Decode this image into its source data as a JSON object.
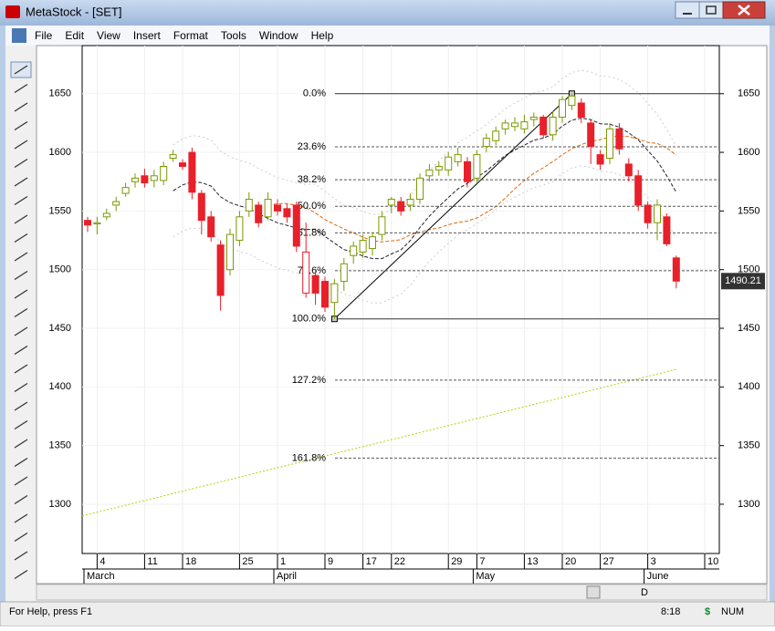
{
  "window": {
    "title": "MetaStock - [SET]",
    "menu": [
      "File",
      "Edit",
      "View",
      "Insert",
      "Format",
      "Tools",
      "Window",
      "Help"
    ],
    "period_button": "D",
    "status": {
      "help": "For Help, press F1",
      "time": "8:18",
      "currency": "$",
      "num": "NUM"
    }
  },
  "chart_data": {
    "type": "candlestick",
    "categories": [
      null,
      "4",
      null,
      null,
      null,
      null,
      "11",
      null,
      null,
      null,
      "18",
      null,
      null,
      null,
      null,
      null,
      "25",
      null,
      null,
      null,
      "1",
      null,
      null,
      null,
      null,
      "9",
      null,
      null,
      null,
      "17",
      null,
      null,
      "22",
      null,
      null,
      null,
      null,
      null,
      "29",
      null,
      null,
      "7",
      null,
      null,
      null,
      null,
      "13",
      null,
      null,
      null,
      "20",
      null,
      null,
      null,
      "27",
      null,
      null,
      null,
      null,
      "3",
      null,
      null,
      null,
      null,
      null,
      "10"
    ],
    "months": [
      "March",
      null,
      null,
      null,
      null,
      null,
      null,
      null,
      null,
      null,
      null,
      null,
      null,
      null,
      null,
      null,
      null,
      null,
      null,
      null,
      "April",
      null,
      null,
      null,
      null,
      null,
      null,
      null,
      null,
      null,
      null,
      null,
      null,
      null,
      null,
      null,
      null,
      null,
      null,
      null,
      null,
      "May",
      null,
      null,
      null,
      null,
      null,
      null,
      null,
      null,
      null,
      null,
      null,
      null,
      null,
      null,
      null,
      null,
      null,
      "June",
      null,
      null,
      null,
      null,
      null,
      null
    ],
    "open": [
      1542,
      1539,
      1545,
      1555,
      1565,
      1575,
      1580,
      1576,
      1576,
      1595,
      1591,
      1600,
      1565,
      1545,
      1521,
      1500,
      1525,
      1550,
      1555,
      1545,
      1555,
      1552,
      1555,
      1480,
      1495,
      1490,
      1472,
      1490,
      1512,
      1515,
      1518,
      1530,
      1555,
      1558,
      1555,
      1560,
      1580,
      1585,
      1585,
      1592,
      1592,
      1578,
      1605,
      1610,
      1620,
      1622,
      1620,
      1628,
      1630,
      1615,
      1630,
      1640,
      1642,
      1625,
      1598,
      1595,
      1620,
      1590,
      1580,
      1555,
      1540,
      1545,
      1510,
      null,
      null,
      null
    ],
    "high": [
      1545,
      1545,
      1552,
      1562,
      1574,
      1582,
      1586,
      1585,
      1592,
      1602,
      1594,
      1604,
      1568,
      1550,
      1525,
      1535,
      1550,
      1566,
      1558,
      1566,
      1560,
      1556,
      1558,
      1540,
      1500,
      1494,
      1492,
      1510,
      1524,
      1530,
      1532,
      1550,
      1562,
      1562,
      1565,
      1582,
      1590,
      1592,
      1600,
      1604,
      1596,
      1602,
      1616,
      1622,
      1628,
      1630,
      1632,
      1634,
      1632,
      1635,
      1648,
      1650,
      1646,
      1628,
      1602,
      1625,
      1625,
      1595,
      1585,
      1558,
      1560,
      1548,
      1512,
      null,
      null,
      null
    ],
    "low": [
      1532,
      1530,
      1542,
      1550,
      1562,
      1570,
      1570,
      1570,
      1572,
      1592,
      1585,
      1560,
      1530,
      1524,
      1465,
      1495,
      1520,
      1545,
      1536,
      1542,
      1546,
      1540,
      1515,
      1476,
      1470,
      1464,
      1458,
      1482,
      1505,
      1510,
      1512,
      1525,
      1548,
      1546,
      1550,
      1556,
      1575,
      1580,
      1580,
      1588,
      1570,
      1574,
      1600,
      1606,
      1615,
      1618,
      1616,
      1622,
      1612,
      1610,
      1625,
      1636,
      1625,
      1590,
      1585,
      1590,
      1598,
      1575,
      1550,
      1535,
      1525,
      1520,
      1484,
      null,
      null,
      null
    ],
    "close": [
      1538,
      1540,
      1548,
      1558,
      1570,
      1578,
      1574,
      1580,
      1588,
      1598,
      1588,
      1566,
      1542,
      1528,
      1478,
      1530,
      1545,
      1560,
      1540,
      1560,
      1550,
      1545,
      1520,
      1515,
      1480,
      1468,
      1488,
      1505,
      1520,
      1525,
      1528,
      1545,
      1560,
      1550,
      1560,
      1578,
      1585,
      1588,
      1596,
      1598,
      1575,
      1598,
      1612,
      1618,
      1625,
      1625,
      1626,
      1630,
      1615,
      1630,
      1645,
      1648,
      1630,
      1605,
      1590,
      1620,
      1603,
      1580,
      1555,
      1540,
      1555,
      1522,
      1490.21,
      null,
      null,
      null
    ],
    "up_color": "#7a9a01",
    "down_color": "#e8202a",
    "ylim": [
      1258,
      1691
    ],
    "yticks": [
      1300,
      1350,
      1400,
      1450,
      1500,
      1550,
      1600,
      1650
    ],
    "fibonacci": {
      "low": 1458,
      "high": 1650,
      "levels": [
        {
          "value": 0,
          "label": "0.0%"
        },
        {
          "value": 23.6,
          "label": "23.6%"
        },
        {
          "value": 38.2,
          "label": "38.2%"
        },
        {
          "value": 50,
          "label": "50.0%"
        },
        {
          "value": 61.8,
          "label": "61.8%"
        },
        {
          "value": 78.6,
          "label": "78.6%"
        },
        {
          "value": 100,
          "label": "100.0%"
        },
        {
          "value": 127.2,
          "label": "127.2%"
        },
        {
          "value": 161.8,
          "label": "161.8%"
        }
      ]
    },
    "trendline": {
      "start": 1290,
      "end": 1415,
      "color": "#b5d400"
    }
  }
}
